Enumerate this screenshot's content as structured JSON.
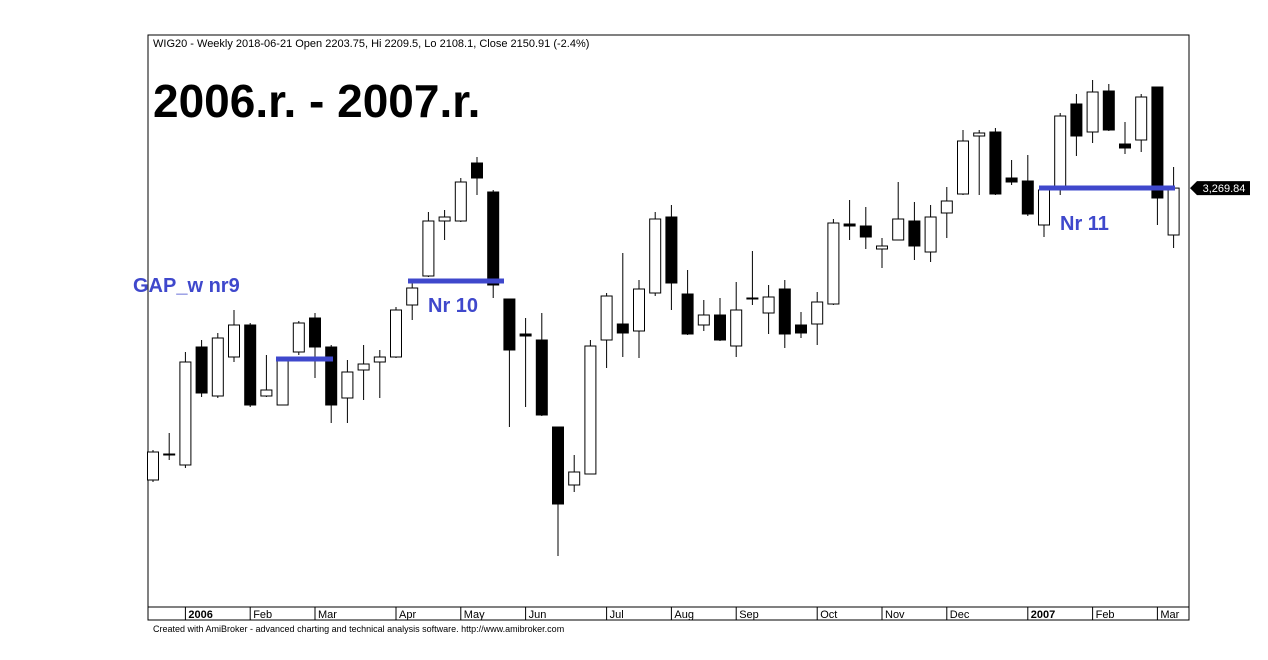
{
  "chart_data": {
    "type": "candlestick",
    "header": "WIG20 - Weekly 2018-06-21 Open 2203.75, Hi 2209.5, Lo 2108.1, Close 2150.91 (-2.4%)",
    "title": "2006.r. - 2007.r.",
    "footer": "Created with AmiBroker - advanced charting and technical analysis software. http://www.amibroker.com",
    "categories": [
      null,
      null,
      "2006",
      null,
      null,
      null,
      "Feb",
      null,
      null,
      null,
      "Mar",
      null,
      null,
      null,
      null,
      "Apr",
      null,
      null,
      null,
      "May",
      null,
      null,
      null,
      "Jun",
      null,
      null,
      null,
      null,
      "Jul",
      null,
      null,
      null,
      "Aug",
      null,
      null,
      null,
      "Sep",
      null,
      null,
      null,
      null,
      "Oct",
      null,
      null,
      null,
      "Nov",
      null,
      null,
      null,
      "Dec",
      null,
      null,
      null,
      null,
      "2007",
      null,
      null,
      null,
      "Feb",
      null,
      null,
      null,
      "Mar",
      null
    ],
    "open": [
      2686,
      2738,
      2716,
      2952,
      2854,
      2932,
      2996,
      2854,
      2836,
      2942,
      3010,
      2952,
      2850,
      2906,
      2922,
      2932,
      3036,
      3094,
      3204,
      3204,
      3320,
      3262,
      3048,
      2978,
      2966,
      2792,
      2676,
      2698,
      2966,
      2998,
      2984,
      3060,
      3212,
      3058,
      2996,
      3016,
      2954,
      3050,
      3020,
      3068,
      2996,
      2998,
      3038,
      3198,
      3194,
      3148,
      3166,
      3204,
      3142,
      3220,
      3258,
      3374,
      3382,
      3290,
      3284,
      3196,
      3266,
      3438,
      3382,
      3464,
      3358,
      3366,
      3472,
      3176
    ],
    "high": [
      2746,
      2780,
      2942,
      2966,
      2980,
      3026,
      3000,
      2936,
      2930,
      3004,
      3020,
      2956,
      2926,
      2956,
      2946,
      3032,
      3086,
      3222,
      3226,
      3290,
      3332,
      3266,
      3048,
      3010,
      3020,
      2792,
      2736,
      2966,
      3060,
      3140,
      3086,
      3222,
      3236,
      3106,
      3046,
      3050,
      3082,
      3144,
      3076,
      3086,
      3022,
      3062,
      3208,
      3246,
      3232,
      3170,
      3282,
      3242,
      3236,
      3272,
      3386,
      3386,
      3390,
      3326,
      3336,
      3270,
      3420,
      3458,
      3486,
      3478,
      3402,
      3458,
      3472,
      3312
    ],
    "low": [
      2682,
      2726,
      2710,
      2852,
      2850,
      2922,
      2832,
      2852,
      2836,
      2936,
      2890,
      2800,
      2800,
      2846,
      2850,
      2930,
      3006,
      3092,
      3166,
      3202,
      3256,
      3050,
      2792,
      2832,
      2814,
      2534,
      2662,
      2698,
      2910,
      2932,
      2930,
      3054,
      3026,
      2976,
      2984,
      2964,
      2932,
      3036,
      2978,
      2950,
      2970,
      2956,
      3036,
      3166,
      3148,
      3110,
      3166,
      3126,
      3122,
      3170,
      3256,
      3256,
      3256,
      3276,
      3214,
      3172,
      3256,
      3334,
      3360,
      3384,
      3338,
      3342,
      3196,
      3150
    ],
    "close": [
      2742,
      2738,
      2922,
      2860,
      2970,
      2996,
      2836,
      2866,
      2930,
      3000,
      2952,
      2836,
      2902,
      2918,
      2932,
      3026,
      3070,
      3204,
      3212,
      3282,
      3290,
      3076,
      2946,
      2974,
      2816,
      2638,
      2702,
      2954,
      3054,
      2980,
      3068,
      3208,
      3080,
      2978,
      3016,
      2966,
      3026,
      3050,
      3052,
      2978,
      2980,
      3042,
      3200,
      3194,
      3172,
      3154,
      3208,
      3154,
      3212,
      3244,
      3364,
      3380,
      3258,
      3282,
      3218,
      3266,
      3414,
      3374,
      3462,
      3386,
      3350,
      3452,
      3250,
      3269.84
    ],
    "up_color": "#ffffff",
    "down_color": "#000000",
    "ylim": [
      2432,
      3576
    ],
    "last_label": "3,269.84",
    "annotations": [
      {
        "text": "GAP_w nr9",
        "level": 2928
      },
      {
        "text": "Nr 10",
        "level": 3084
      },
      {
        "text": "Nr 11",
        "level": 3270
      }
    ],
    "annotation_color": "#3f48cc"
  }
}
